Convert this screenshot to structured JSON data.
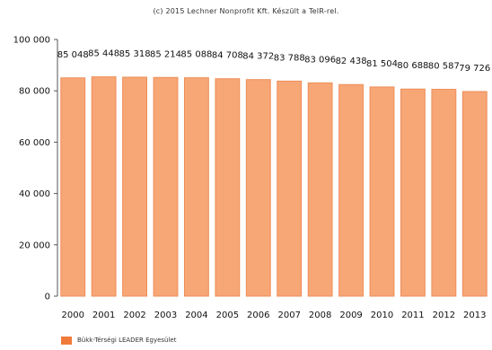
{
  "copyright": "(c) 2015 Lechner Nonprofit Kft. Készült a TeIR-rel.",
  "colors": {
    "bar_fill": "#f7a676",
    "bar_stroke": "#ed8f58",
    "legend_swatch": "#f07a3a",
    "axis": "#555555",
    "text": "#111111"
  },
  "chart_data": {
    "type": "bar",
    "title": "",
    "xlabel": "",
    "ylabel": "",
    "categories": [
      "2000",
      "2001",
      "2002",
      "2003",
      "2004",
      "2005",
      "2006",
      "2007",
      "2008",
      "2009",
      "2010",
      "2011",
      "2012",
      "2013"
    ],
    "series": [
      {
        "name": "Bükk-Térségi LEADER Egyesület",
        "values": [
          85048,
          85448,
          85318,
          85214,
          85088,
          84708,
          84372,
          83788,
          83096,
          82438,
          81504,
          80688,
          80587,
          79726
        ],
        "data_labels": [
          "85 048",
          "85 448",
          "85 318",
          "85 214",
          "85 088",
          "84 708",
          "84 372",
          "83 788",
          "83 096",
          "82 438",
          "81 504",
          "80 688",
          "80 587",
          "79 726"
        ]
      }
    ],
    "ylim": [
      0,
      100000
    ],
    "yticks": [
      0,
      20000,
      40000,
      60000,
      80000,
      100000
    ],
    "ytick_labels": [
      "0",
      "20 000",
      "40 000",
      "60 000",
      "80 000",
      "100 000"
    ],
    "grid": false,
    "legend_position": "bottom-left"
  }
}
